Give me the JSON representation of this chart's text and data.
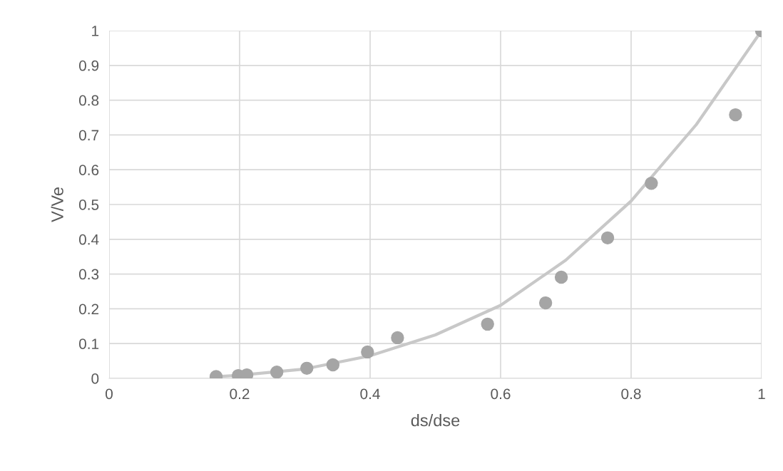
{
  "chart_data": {
    "type": "scatter",
    "xlabel": "ds/dse",
    "ylabel": "V/Ve",
    "xlim": [
      0,
      1
    ],
    "ylim": [
      0,
      1
    ],
    "xticks": [
      0,
      0.2,
      0.4,
      0.6,
      0.8,
      1
    ],
    "yticks": [
      0,
      0.1,
      0.2,
      0.3,
      0.4,
      0.5,
      0.6,
      0.7,
      0.8,
      0.9,
      1
    ],
    "grid": true,
    "series": [
      {
        "color": "#a5a5a5",
        "marker": "circle",
        "x": [
          0.164,
          0.198,
          0.211,
          0.257,
          0.303,
          0.343,
          0.396,
          0.442,
          0.58,
          0.669,
          0.693,
          0.764,
          0.831,
          0.96,
          1.0
        ],
        "values": [
          0.005,
          0.008,
          0.01,
          0.018,
          0.029,
          0.039,
          0.076,
          0.117,
          0.156,
          0.217,
          0.291,
          0.404,
          0.561,
          0.758,
          1.0
        ]
      },
      {
        "type": "line",
        "color": "#c8c8c8",
        "line_style": "solid",
        "x": [
          0.164,
          0.2,
          0.3,
          0.4,
          0.5,
          0.6,
          0.7,
          0.8,
          0.9,
          1.0
        ],
        "values": [
          0.005,
          0.009,
          0.027,
          0.065,
          0.125,
          0.21,
          0.34,
          0.51,
          0.73,
          1.0
        ]
      }
    ]
  }
}
